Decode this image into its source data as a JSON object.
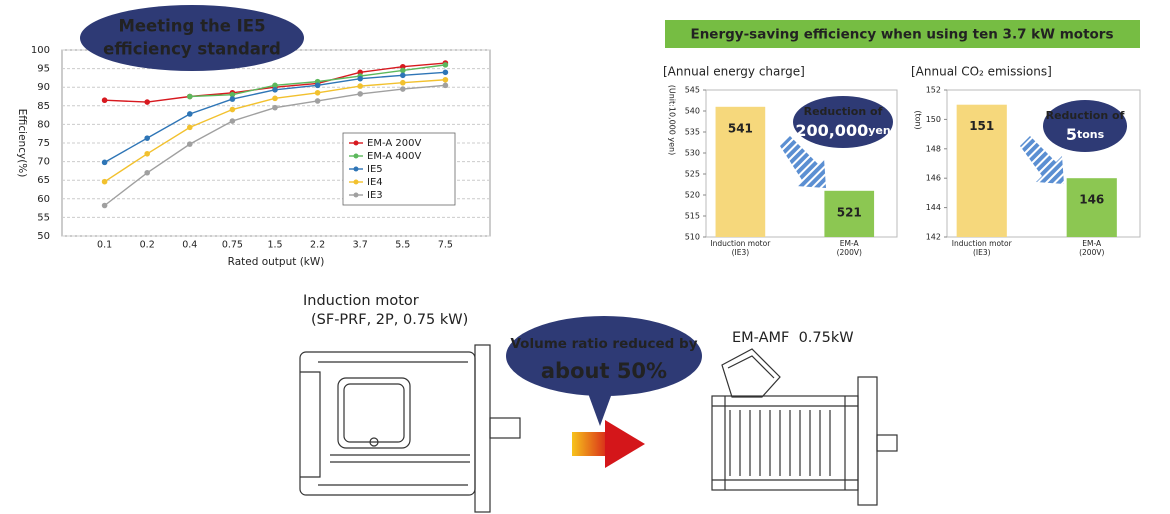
{
  "chart_data": [
    {
      "type": "line",
      "annotation": [
        "Meeting the IE5",
        "efficiency standard"
      ],
      "x_label": "Rated output (kW)",
      "y_label": "Efficiency(%)",
      "categories": [
        "0.1",
        "0.2",
        "0.4",
        "0.75",
        "1.5",
        "2.2",
        "3.7",
        "5.5",
        "7.5"
      ],
      "series": [
        {
          "name": "EM-A 200V",
          "color": "#d7191f",
          "values": [
            86.5,
            86,
            87.5,
            88.5,
            90,
            91,
            94,
            95.5,
            96.5
          ]
        },
        {
          "name": "EM-A 400V",
          "color": "#5cb85c",
          "values": [
            null,
            null,
            87.5,
            88,
            90.5,
            91.5,
            93,
            94.5,
            96
          ]
        },
        {
          "name": "IE5",
          "color": "#2e75b6",
          "values": [
            69.8,
            76.3,
            82.8,
            86.8,
            89.3,
            90.5,
            92.3,
            93.2,
            94
          ]
        },
        {
          "name": "IE4",
          "color": "#f2c12e",
          "values": [
            64.6,
            72.1,
            79.2,
            84,
            87,
            88.5,
            90.3,
            91.2,
            92
          ]
        },
        {
          "name": "IE3",
          "color": "#a0a0a0",
          "values": [
            58.2,
            67,
            74.7,
            80.9,
            84.5,
            86.3,
            88.2,
            89.5,
            90.5
          ]
        }
      ],
      "ylim": [
        50,
        100
      ],
      "yticks": [
        50,
        55,
        60,
        65,
        70,
        75,
        80,
        85,
        90,
        95,
        100
      ],
      "grid": true,
      "legend": "center right"
    },
    {
      "type": "bar",
      "banner": "Energy-saving efficiency when using ten 3.7 kW motors",
      "title": "[Annual energy charge]",
      "y_label": "(Unit:10,000 yen)",
      "categories": [
        [
          "Induction motor",
          "(IE3)"
        ],
        [
          "EM-A",
          "(200V)"
        ]
      ],
      "values": [
        541,
        521
      ],
      "colors": [
        "#f6d87c",
        "#8cc752"
      ],
      "annotation": [
        "Reduction of",
        "200,000",
        "yen"
      ],
      "ylim": [
        510,
        545
      ],
      "yticks": [
        510,
        515,
        520,
        525,
        530,
        535,
        540,
        545
      ]
    },
    {
      "type": "bar",
      "title": "[Annual CO₂ emissions]",
      "y_label": "(ton)",
      "categories": [
        [
          "Induction motor",
          "(IE3)"
        ],
        [
          "EM-A",
          "(200V)"
        ]
      ],
      "values": [
        151,
        146
      ],
      "colors": [
        "#f6d87c",
        "#8cc752"
      ],
      "annotation": [
        "Reduction of",
        "5",
        "tons"
      ],
      "ylim": [
        142,
        152
      ],
      "yticks": [
        142,
        144,
        146,
        148,
        150,
        152
      ]
    }
  ],
  "illustration": {
    "left_motor": [
      "Induction motor",
      "(SF-PRF, 2P, 0.75 kW)"
    ],
    "callout": [
      "Volume ratio reduced by",
      "about 50%"
    ],
    "right_motor": "EM-AMF  0.75kW"
  }
}
